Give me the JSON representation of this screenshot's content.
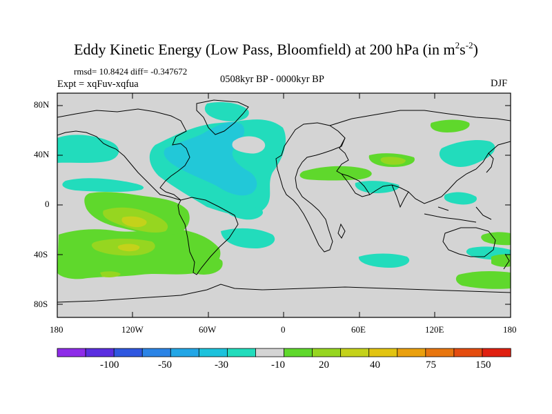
{
  "map": {
    "title_main": "Eddy Kinetic Energy (Low Pass, Bloomfield) at 200 hPa (in m",
    "title_sup1": "2",
    "title_mid": "s",
    "title_sup2": "-2",
    "title_end": ")",
    "stats": "rmsd= 10.8424 diff= -0.347672",
    "experiment": "Expt = xqFuv-xqfua",
    "period": "0508kyr BP - 0000kyr BP",
    "season": "DJF",
    "lat_ticks": [
      "80N",
      "40N",
      "0",
      "40S",
      "80S"
    ],
    "lon_ticks": [
      "180",
      "120W",
      "60W",
      "0",
      "60E",
      "120E",
      "180"
    ]
  },
  "colorbar": {
    "colors": [
      "#8e2ce8",
      "#5a2ee0",
      "#2f57e0",
      "#2b84e6",
      "#22a6e6",
      "#1cc2dc",
      "#22dcbc",
      "#d4d4d4",
      "#5fd82c",
      "#96d620",
      "#c4d21a",
      "#e2c411",
      "#eaa00e",
      "#e8760f",
      "#e44c0f",
      "#e02010"
    ],
    "labels": [
      "-100",
      "-50",
      "-30",
      "-10",
      "20",
      "40",
      "75",
      "150"
    ]
  }
}
